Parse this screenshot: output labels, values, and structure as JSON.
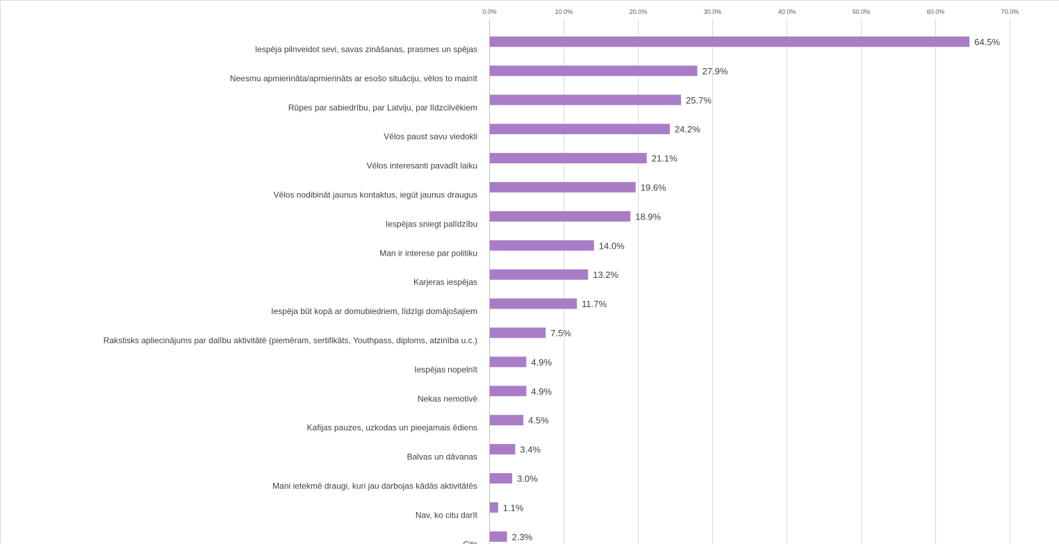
{
  "chart_data": {
    "type": "bar",
    "orientation": "horizontal",
    "categories": [
      "Iespēja pilnveidot sevi, savas zināšanas, prasmes un spējas",
      "Neesmu apmierināta/apmierināts ar esošo situāciju, vēlos to mainīt",
      "Rūpes par sabiedrību, par Latviju, par līdzcilvēkiem",
      "Vēlos paust savu viedokli",
      "Vēlos interesanti pavadīt laiku",
      "Vēlos nodibināt jaunus kontaktus, iegūt jaunus draugus",
      "Iespējas sniegt palīdzību",
      "Man ir interese par politiku",
      "Karjeras iespējas",
      "Iespēja būt kopā ar domubiedriem, līdzīgi domājošajiem",
      "Rakstisks apliecinājums par dalību aktivitātē (piemēram, sertifikāts, Youthpass, diploms, atzinība u.c.)",
      "Iespējas nopelnīt",
      "Nekas nemotivē",
      "Kafijas pauzes, uzkodas un pieejamais ēdiens",
      "Balvas un dāvanas",
      "Mani ietekmē draugi, kuri jau darbojas kādās aktivitātēs",
      "Nav, ko citu darīt",
      "Cits"
    ],
    "values": [
      64.5,
      27.9,
      25.7,
      24.2,
      21.1,
      19.6,
      18.9,
      14.0,
      13.2,
      11.7,
      7.5,
      4.9,
      4.9,
      4.5,
      3.4,
      3.0,
      1.1,
      2.3
    ],
    "value_labels": [
      "64.5%",
      "27.9%",
      "25.7%",
      "24.2%",
      "21.1%",
      "19.6%",
      "18.9%",
      "14.0%",
      "13.2%",
      "11.7%",
      "7.5%",
      "4.9%",
      "4.9%",
      "4.5%",
      "3.4%",
      "3.0%",
      "1.1%",
      "2.3%"
    ],
    "ticks": [
      0,
      10,
      20,
      30,
      40,
      50,
      60,
      70
    ],
    "tick_labels": [
      "0.0%",
      "10.0%",
      "20.0%",
      "30.0%",
      "40.0%",
      "50.0%",
      "60.0%",
      "70.0%"
    ],
    "xlim": [
      0,
      70
    ],
    "x_axis_position": "top",
    "grid": true,
    "legend": false,
    "bar_color": "#a97dc6",
    "title": "",
    "xlabel": "",
    "ylabel": ""
  }
}
